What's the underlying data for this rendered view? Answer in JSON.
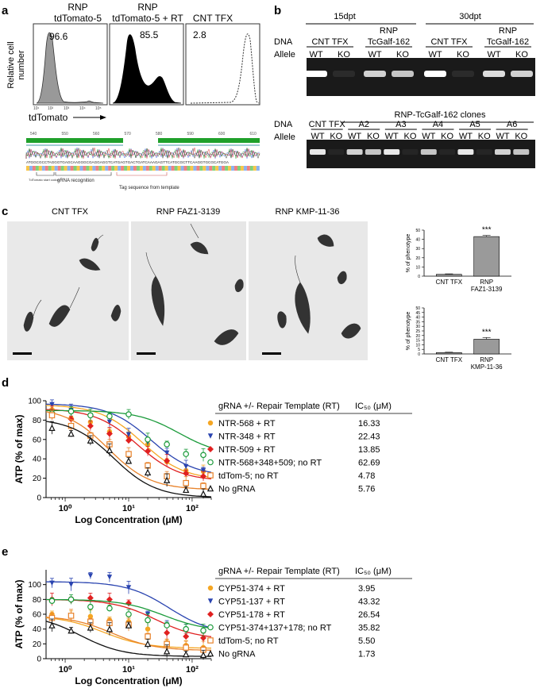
{
  "panel_a": {
    "letter": "a",
    "flow": [
      {
        "title1": "RNP",
        "title2": "tdTomato-5",
        "pct": "96.6"
      },
      {
        "title1": "RNP",
        "title2": "tdTomato-5 + RT",
        "pct": "85.5"
      },
      {
        "title1": "",
        "title2": "CNT TFX",
        "pct": "2.8"
      }
    ],
    "ylabel1": "Relative cell",
    "ylabel2": "number",
    "xlabel": "tdTomato",
    "ticks": [
      "10¹",
      "10²",
      "10³",
      "10⁴",
      "10⁵"
    ],
    "seq_positions": [
      "540",
      "550",
      "560",
      "570",
      "580",
      "590",
      "600",
      "610"
    ],
    "seq_text": "ATGGCGCCTAGGGTGAGCAAGGGCGAGGAGGTCATGAGTGACTGATCAAAGAGTTCATGCGCTTCAAGGTGCGCATGGA",
    "seq_labels": [
      "TdTomato start codon",
      "gRNA recognition",
      "Tag sequence from template"
    ]
  },
  "panel_b": {
    "letter": "b",
    "top": {
      "time_labels": [
        "15dpt",
        "30dpt"
      ],
      "row_dna": "DNA",
      "row_allele": "Allele",
      "groups": [
        {
          "l1": "",
          "l2": "CNT TFX"
        },
        {
          "l1": "RNP",
          "l2": "TcGalf-162"
        },
        {
          "l1": "",
          "l2": "CNT TFX"
        },
        {
          "l1": "RNP",
          "l2": "TcGalf-162"
        }
      ],
      "alleles": [
        "WT",
        "KO",
        "WT",
        "KO",
        "WT",
        "KO",
        "WT",
        "KO"
      ]
    },
    "bottom": {
      "clones_title": "RNP-TcGalf-162 clones",
      "row_dna": "DNA",
      "row_allele": "Allele",
      "groups": [
        "CNT TFX",
        "A2",
        "A3",
        "A4",
        "A5",
        "A6"
      ],
      "alleles": [
        "WT",
        "KO",
        "WT",
        "KO",
        "WT",
        "KO",
        "WT",
        "KO",
        "WT",
        "KO",
        "WT",
        "KO"
      ]
    }
  },
  "panel_c": {
    "letter": "c",
    "image_titles": [
      "CNT TFX",
      "RNP FAZ1-3139",
      "RNP KMP-11-36"
    ]
  },
  "panel_d": {
    "letter": "d"
  },
  "panel_e": {
    "letter": "e"
  },
  "chart_data": [
    {
      "type": "bar",
      "ylabel": "% of phenotype",
      "categories": [
        "CNT TFX",
        "RNP FAZ1-3139"
      ],
      "values": [
        2,
        43
      ],
      "errors": [
        0.5,
        1.2
      ],
      "ylim": [
        0,
        50
      ],
      "yticks": [
        "0",
        "10",
        "20",
        "30",
        "40",
        "50"
      ],
      "significance": "***"
    },
    {
      "type": "bar",
      "ylabel": "% of phenotype",
      "categories": [
        "CNT TFX",
        "RNP KMP-11-36"
      ],
      "values": [
        1.5,
        16
      ],
      "errors": [
        0.4,
        1.8
      ],
      "ylim": [
        0,
        50
      ],
      "yticks": [
        "0",
        "5",
        "10",
        "15",
        "20",
        "25",
        "30",
        "35",
        "40",
        "45",
        "50"
      ],
      "significance": "***"
    },
    {
      "type": "scatter",
      "ylabel": "ATP (% of max)",
      "xlabel": "Log Concentration (μM)",
      "xscale": "log",
      "xlim": [
        0.5,
        200
      ],
      "ylim": [
        0,
        100
      ],
      "yticks": [
        "0",
        "20",
        "40",
        "60",
        "80",
        "100"
      ],
      "xticks": [
        "10⁰",
        "10¹",
        "10²"
      ],
      "legend_header": "gRNA +/- Repair Template (RT)",
      "ic50_header": "IC₅₀ (μM)",
      "x": [
        0.62,
        1.24,
        2.5,
        5,
        10,
        20,
        40,
        80,
        150
      ],
      "series": [
        {
          "name": "NTR-568 + RT",
          "ic50": "16.33",
          "color": "#f5a623",
          "marker": "circle-filled",
          "y": [
            91,
            82,
            78,
            68,
            63,
            55,
            37,
            28,
            27
          ],
          "top": 96,
          "bottom": 18
        },
        {
          "name": "NTR-348 + RT",
          "ic50": "22.43",
          "color": "#2a44b0",
          "marker": "tri-down",
          "y": [
            96,
            90,
            84,
            78,
            65,
            57,
            46,
            32,
            28
          ],
          "top": 97,
          "bottom": 22
        },
        {
          "name": "NTR-509 + RT",
          "ic50": "13.85",
          "color": "#e02020",
          "marker": "diamond",
          "y": [
            88,
            81,
            74,
            66,
            59,
            48,
            38,
            25,
            22
          ],
          "top": 92,
          "bottom": 17
        },
        {
          "name": "NTR-568+348+509; no RT",
          "ic50": "62.69",
          "color": "#1a9a3a",
          "marker": "circle-open",
          "y": [
            87,
            89,
            85,
            84,
            86,
            60,
            55,
            45,
            44
          ],
          "top": 90,
          "bottom": 43
        },
        {
          "name": "tdTom-5; no RT",
          "ic50": "4.78",
          "color": "#e8822a",
          "marker": "square-open",
          "y": [
            85,
            74,
            64,
            55,
            45,
            33,
            22,
            15,
            12
          ],
          "top": 93,
          "bottom": 8
        },
        {
          "name": "No gRNA",
          "ic50": "5.76",
          "color": "#111111",
          "marker": "tri-up-open",
          "y": [
            72,
            66,
            59,
            49,
            38,
            26,
            18,
            8,
            4
          ],
          "top": 82,
          "bottom": 0
        }
      ]
    },
    {
      "type": "scatter",
      "ylabel": "ATP (% of max)",
      "xlabel": "Log Concentration (μM)",
      "xscale": "log",
      "xlim": [
        0.5,
        200
      ],
      "ylim": [
        0,
        120
      ],
      "yticks": [
        "0",
        "20",
        "40",
        "60",
        "80",
        "100"
      ],
      "xticks": [
        "10⁰",
        "10¹",
        "10²"
      ],
      "legend_header": "gRNA +/- Repair Template (RT)",
      "ic50_header": "IC₅₀ (μM)",
      "x": [
        0.62,
        1.24,
        2.5,
        5,
        10,
        20,
        40,
        80,
        150
      ],
      "series": [
        {
          "name": "CYP51-374 + RT",
          "ic50": "3.95",
          "color": "#f5a623",
          "marker": "circle-filled",
          "y": [
            60,
            58,
            57,
            52,
            50,
            40,
            22,
            18,
            15
          ],
          "top": 58,
          "bottom": 14
        },
        {
          "name": "CYP51-137 + RT",
          "ic50": "43.32",
          "color": "#2a44b0",
          "marker": "tri-down",
          "y": [
            102,
            100,
            112,
            110,
            96,
            60,
            45,
            38,
            36
          ],
          "top": 104,
          "bottom": 33
        },
        {
          "name": "CYP51-178 + RT",
          "ic50": "26.54",
          "color": "#e02020",
          "marker": "diamond",
          "y": [
            80,
            79,
            82,
            80,
            75,
            52,
            35,
            30,
            28
          ],
          "top": 80,
          "bottom": 26
        },
        {
          "name": "CYP51-374+137+178; no RT",
          "ic50": "35.82",
          "color": "#1a9a3a",
          "marker": "circle-open",
          "y": [
            78,
            80,
            70,
            68,
            60,
            52,
            45,
            40,
            38
          ],
          "top": 80,
          "bottom": 37
        },
        {
          "name": "tdTom-5; no RT",
          "ic50": "5.50",
          "color": "#e8822a",
          "marker": "square-open",
          "y": [
            55,
            58,
            50,
            48,
            46,
            30,
            20,
            15,
            12
          ],
          "top": 58,
          "bottom": 11
        },
        {
          "name": "No gRNA",
          "ic50": "1.73",
          "color": "#111111",
          "marker": "tri-up-open",
          "y": [
            45,
            38,
            42,
            40,
            45,
            20,
            10,
            6,
            5
          ],
          "top": 60,
          "bottom": 3
        }
      ]
    }
  ]
}
